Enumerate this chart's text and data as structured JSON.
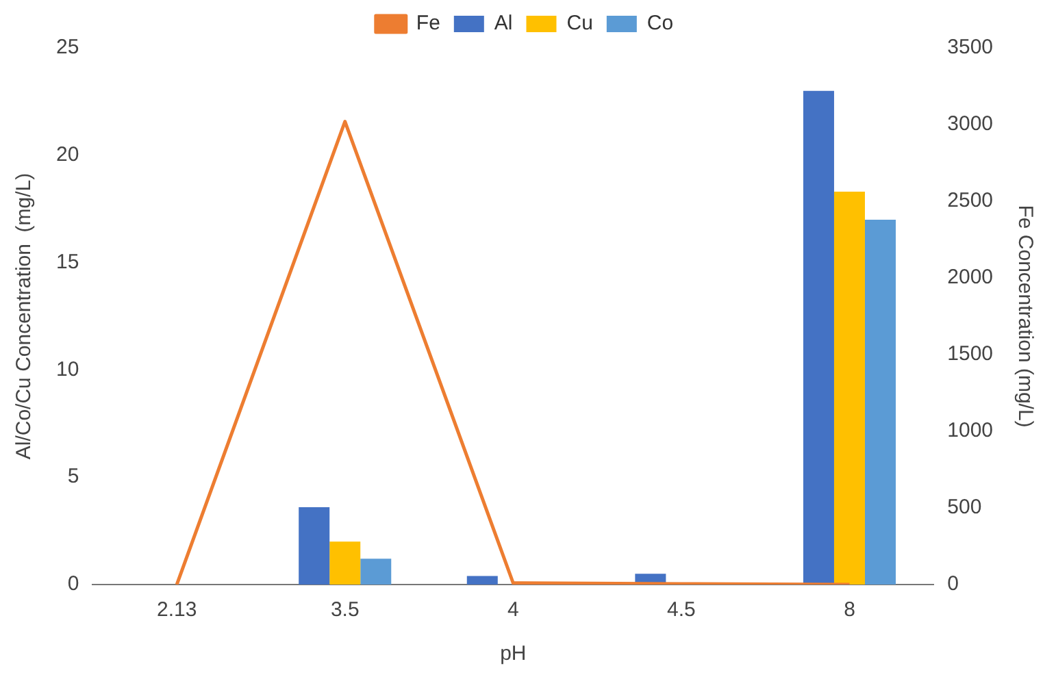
{
  "chart_data": {
    "type": "bar",
    "xlabel": "pH",
    "ylabel": "Al/Co/Cu Concentration  (mg/L)",
    "y2label": "Fe Concentration (mg/L)",
    "categories": [
      "2.13",
      "3.5",
      "4",
      "4.5",
      "8"
    ],
    "series": [
      {
        "name": "Al",
        "color": "#4472c4",
        "values": [
          0,
          3.6,
          0.4,
          0.5,
          23.0
        ]
      },
      {
        "name": "Cu",
        "color": "#ffc000",
        "values": [
          0,
          2.0,
          0,
          0,
          18.3
        ]
      },
      {
        "name": "Co",
        "color": "#5b9bd5",
        "values": [
          0,
          1.2,
          0,
          0,
          17.0
        ]
      },
      {
        "name": "Fe",
        "type": "line",
        "axis": "y2",
        "color": "#ed7d31",
        "values": [
          0,
          3020,
          10,
          5,
          0
        ]
      }
    ],
    "ylim": [
      0,
      25
    ],
    "yticks": [
      0,
      5,
      10,
      15,
      20,
      25
    ],
    "y2lim": [
      0,
      3500
    ],
    "y2ticks": [
      0,
      500,
      1000,
      1500,
      2000,
      2500,
      3000,
      3500
    ],
    "grid": false,
    "legend": "top",
    "marker": "none"
  }
}
